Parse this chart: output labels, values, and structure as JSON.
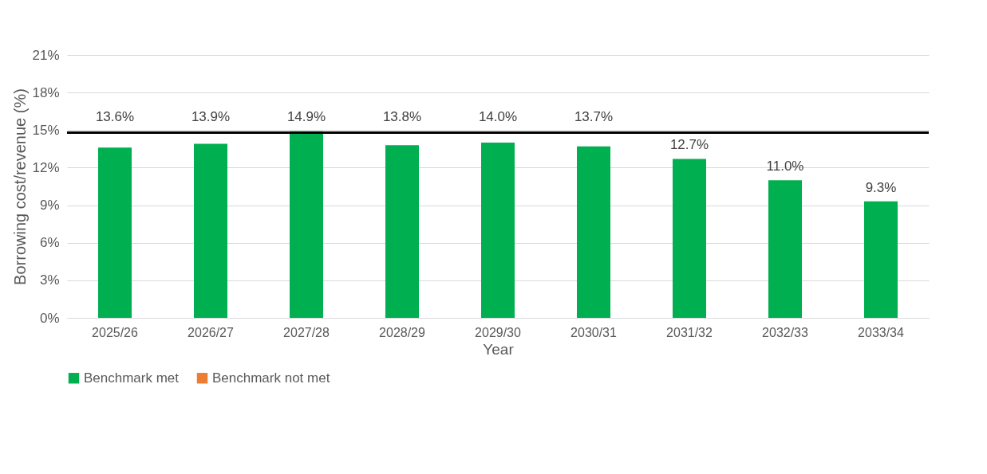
{
  "chart_data": {
    "type": "bar",
    "xlabel": "Year",
    "ylabel": "Borrowing cost/revenue (%)",
    "categories": [
      "2025/26",
      "2026/27",
      "2027/28",
      "2028/29",
      "2029/30",
      "2030/31",
      "2031/32",
      "2032/33",
      "2033/34"
    ],
    "series": [
      {
        "name": "Benchmark met",
        "color": "#00b050",
        "values": [
          13.6,
          13.9,
          14.9,
          13.8,
          14.0,
          13.7,
          12.7,
          11.0,
          9.3
        ],
        "value_labels": [
          "13.6%",
          "13.9%",
          "14.9%",
          "13.8%",
          "14.0%",
          "13.7%",
          "12.7%",
          "11.0%",
          "9.3%"
        ]
      },
      {
        "name": "Benchmark not met",
        "color": "#ed7d31",
        "values": [
          null,
          null,
          null,
          null,
          null,
          null,
          null,
          null,
          null
        ]
      }
    ],
    "ylim": [
      0,
      21
    ],
    "yticks": [
      {
        "value": 0,
        "label": "0%"
      },
      {
        "value": 3,
        "label": "3%"
      },
      {
        "value": 6,
        "label": "6%"
      },
      {
        "value": 9,
        "label": "9%"
      },
      {
        "value": 12,
        "label": "12%"
      },
      {
        "value": 15,
        "label": "15%"
      },
      {
        "value": 18,
        "label": "18%"
      },
      {
        "value": 21,
        "label": "21%"
      }
    ],
    "ref_lines": [
      {
        "axis": "y",
        "value": 14.8,
        "color": "#000000"
      }
    ],
    "grid": "y",
    "legend": "bottom"
  }
}
